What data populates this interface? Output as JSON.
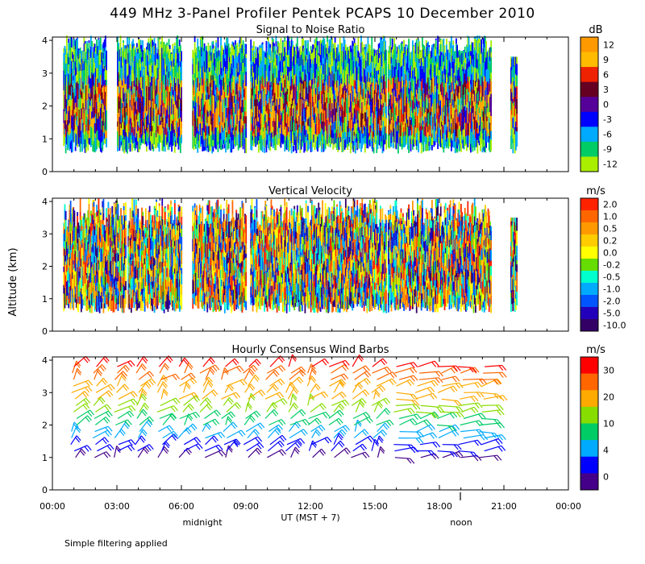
{
  "title": "449 MHz 3-Panel Profiler Pentek PCAPS 10 December 2010",
  "y_axis_label": "Altitude (km)",
  "x_axis": {
    "label": "UT  (MST + 7)",
    "ticks": [
      "00:00",
      "03:00",
      "06:00",
      "09:00",
      "12:00",
      "15:00",
      "18:00",
      "21:00",
      "00:00"
    ],
    "markers": [
      {
        "text": "midnight"
      },
      {
        "text": "noon"
      }
    ]
  },
  "footer_note": "Simple filtering applied",
  "chart_data": [
    {
      "type": "heatmap",
      "title": "Signal to Noise Ratio",
      "xlabel": "UT  (MST + 7)",
      "ylabel": "Altitude (km)",
      "ylim": [
        0,
        4.1
      ],
      "y_ticks": [
        "0",
        "1",
        "2",
        "3",
        "4"
      ],
      "xlim_hours": [
        0,
        24
      ],
      "colorbar": {
        "unit": "dB",
        "labels": [
          "12",
          "9",
          "6",
          "3",
          "0",
          "-3",
          "-6",
          "-9",
          "-12"
        ],
        "colors": [
          "#ff9900",
          "#ffbb00",
          "#ee2200",
          "#660022",
          "#550099",
          "#0000ff",
          "#00aaff",
          "#00cc66",
          "#aaee00"
        ]
      },
      "data_coverage_hours": [
        [
          0.5,
          2.5
        ],
        [
          3.0,
          6.0
        ],
        [
          6.5,
          9.0
        ],
        [
          9.2,
          15.5
        ],
        [
          15.6,
          20.4
        ],
        [
          21.3,
          21.6
        ]
      ]
    },
    {
      "type": "heatmap",
      "title": "Vertical Velocity",
      "xlabel": "UT  (MST + 7)",
      "ylabel": "Altitude (km)",
      "ylim": [
        0,
        4.1
      ],
      "y_ticks": [
        "0",
        "1",
        "2",
        "3",
        "4"
      ],
      "xlim_hours": [
        0,
        24
      ],
      "colorbar": {
        "unit": "m/s",
        "labels": [
          "2.0",
          "1.0",
          "0.5",
          "0.2",
          "0.0",
          "-0.2",
          "-0.5",
          "-1.0",
          "-2.0",
          "-5.0",
          "-10.0"
        ],
        "colors": [
          "#ff2200",
          "#ff6600",
          "#ff9900",
          "#ffcc00",
          "#ffff00",
          "#66dd00",
          "#00ffcc",
          "#00aaff",
          "#0055ff",
          "#2200bb",
          "#330066"
        ]
      },
      "data_coverage_hours": [
        [
          0.5,
          3.4
        ],
        [
          3.5,
          6.0
        ],
        [
          6.5,
          9.0
        ],
        [
          9.2,
          15.5
        ],
        [
          15.6,
          20.4
        ],
        [
          21.3,
          21.6
        ]
      ]
    },
    {
      "type": "scatter",
      "title": "Hourly Consensus Wind Barbs",
      "xlabel": "UT  (MST + 7)",
      "ylabel": "Altitude (km)",
      "ylim": [
        0,
        4.1
      ],
      "y_ticks": [
        "0",
        "1",
        "2",
        "3",
        "4"
      ],
      "xlim_hours": [
        0,
        24
      ],
      "colorbar": {
        "unit": "m/s",
        "labels": [
          "30",
          "20",
          "10",
          "4",
          "0"
        ],
        "colors": [
          "#ff0000",
          "#ff6600",
          "#ffaa00",
          "#88dd00",
          "#00cc66",
          "#00aaff",
          "#0000ff",
          "#440088"
        ]
      },
      "barb_hours": [
        1,
        2,
        3,
        4,
        5,
        6,
        7,
        8,
        9,
        10,
        11,
        12,
        13,
        14,
        15,
        16,
        17,
        18,
        19,
        20
      ],
      "barb_altitude_range_km": [
        1.0,
        4.0
      ]
    }
  ]
}
